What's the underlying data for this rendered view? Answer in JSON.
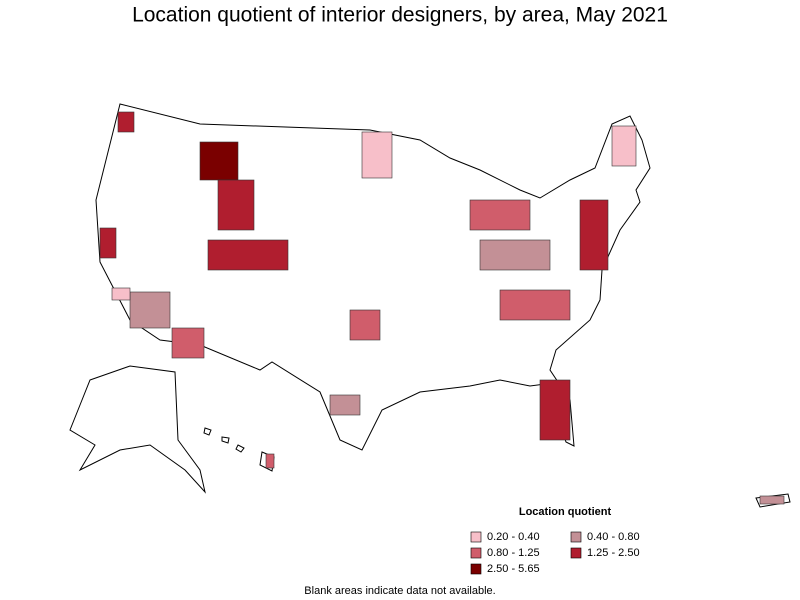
{
  "title": "Location quotient of interior designers, by area, May 2021",
  "legend": {
    "title": "Location quotient",
    "items": [
      {
        "label": "0.20 - 0.40",
        "color": "#f7bfc9"
      },
      {
        "label": "0.40 - 0.80",
        "color": "#c39096"
      },
      {
        "label": "0.80 - 1.25",
        "color": "#d05d6b"
      },
      {
        "label": "1.25 - 2.50",
        "color": "#b01e2f"
      },
      {
        "label": "2.50 - 5.65",
        "color": "#7a0000"
      }
    ]
  },
  "note": "Blank areas indicate data not available."
}
